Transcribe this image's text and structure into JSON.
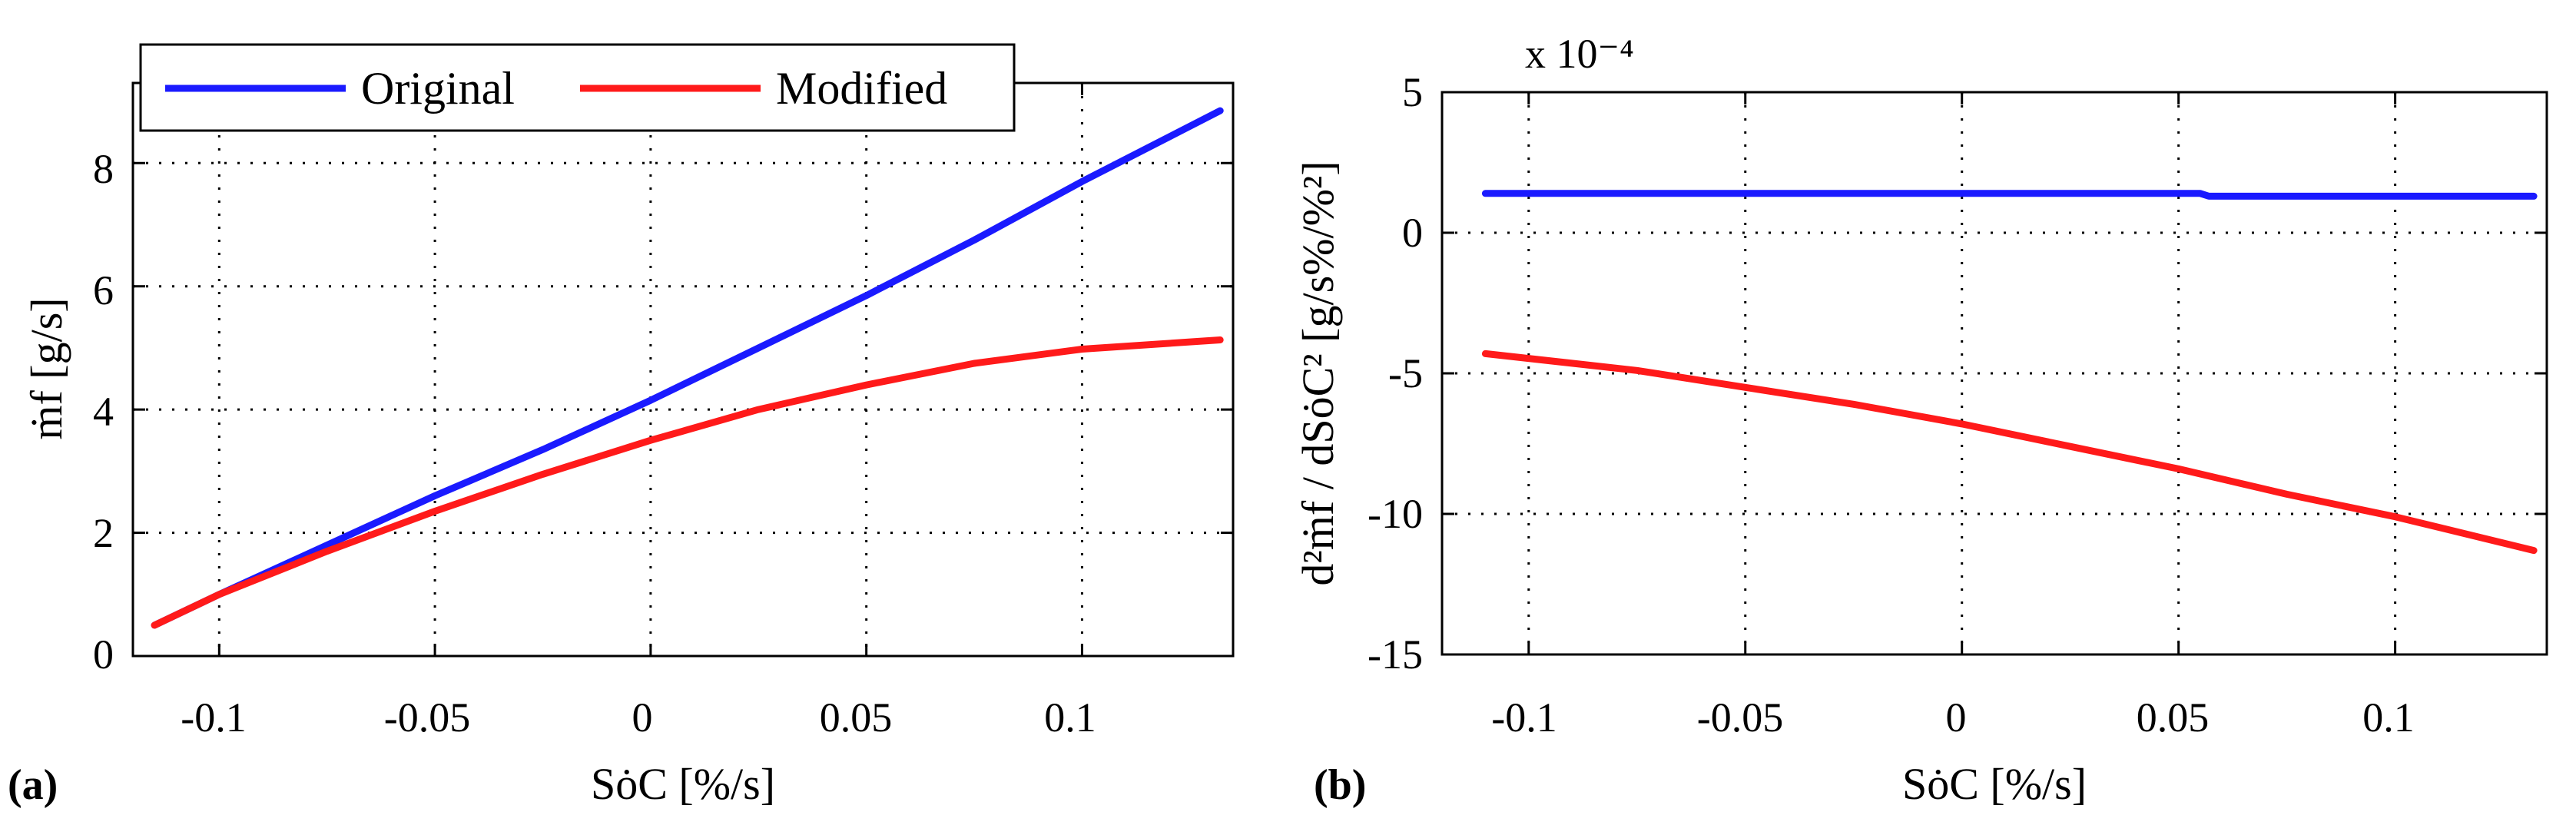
{
  "chart_data": [
    {
      "type": "line",
      "panel_label": "(a)",
      "xlabel": "SȯC [%/s]",
      "ylabel": "ṁf [g/s]",
      "xlim": [
        -0.12,
        0.135
      ],
      "ylim": [
        0,
        9.3
      ],
      "grid": true,
      "legend": {
        "entries": [
          "Original",
          "Modified"
        ],
        "position": "top-left"
      },
      "x_ticks": [
        -0.1,
        -0.05,
        0,
        0.05,
        0.1
      ],
      "x_tick_labels": [
        "-0.1",
        "-0.05",
        "0",
        "0.05",
        "0.1"
      ],
      "y_ticks": [
        0,
        2,
        4,
        6,
        8
      ],
      "y_tick_labels": [
        "0",
        "2",
        "4",
        "6",
        "8"
      ],
      "series": [
        {
          "name": "Original",
          "color": "#1a1aff",
          "x": [
            -0.115,
            -0.1,
            -0.075,
            -0.05,
            -0.025,
            0,
            0.025,
            0.05,
            0.075,
            0.1,
            0.132
          ],
          "y": [
            0.5,
            1.0,
            1.8,
            2.6,
            3.35,
            4.15,
            5.0,
            5.85,
            6.75,
            7.7,
            8.85
          ]
        },
        {
          "name": "Modified",
          "color": "#ff1a1a",
          "x": [
            -0.115,
            -0.1,
            -0.075,
            -0.05,
            -0.025,
            0,
            0.025,
            0.05,
            0.075,
            0.1,
            0.132
          ],
          "y": [
            0.5,
            1.0,
            1.7,
            2.35,
            2.95,
            3.5,
            4.0,
            4.4,
            4.75,
            4.98,
            5.13
          ]
        }
      ]
    },
    {
      "type": "line",
      "panel_label": "(b)",
      "xlabel": "SȯC [%/s]",
      "ylabel": "d²ṁf / dSȯC²  [g/s%/%²]",
      "exponent_label": "x 10⁻⁴",
      "xlim": [
        -0.12,
        0.135
      ],
      "ylim": [
        -15,
        5
      ],
      "grid": true,
      "x_ticks": [
        -0.1,
        -0.05,
        0,
        0.05,
        0.1
      ],
      "x_tick_labels": [
        "-0.1",
        "-0.05",
        "0",
        "0.05",
        "0.1"
      ],
      "y_ticks": [
        -15,
        -10,
        -5,
        0,
        5
      ],
      "y_tick_labels": [
        "-15",
        "-10",
        "-5",
        "0",
        "5"
      ],
      "series": [
        {
          "name": "Original",
          "color": "#1a1aff",
          "x": [
            -0.11,
            -0.05,
            0,
            0.055,
            0.057,
            0.132
          ],
          "y": [
            1.4,
            1.4,
            1.4,
            1.4,
            1.3,
            1.3
          ]
        },
        {
          "name": "Modified",
          "color": "#ff1a1a",
          "x": [
            -0.11,
            -0.075,
            -0.05,
            -0.025,
            0,
            0.025,
            0.05,
            0.075,
            0.1,
            0.132
          ],
          "y": [
            -4.3,
            -4.9,
            -5.5,
            -6.1,
            -6.8,
            -7.6,
            -8.4,
            -9.3,
            -10.1,
            -11.3
          ]
        }
      ]
    }
  ]
}
